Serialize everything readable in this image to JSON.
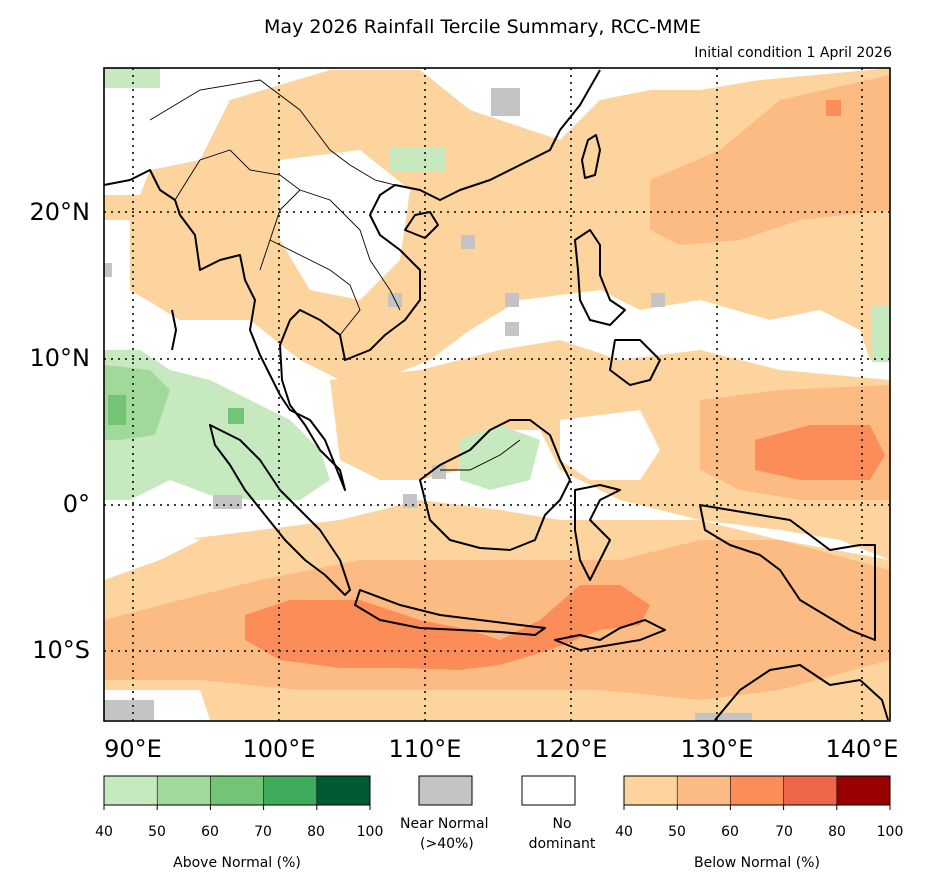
{
  "title": "May 2026 Rainfall Tercile Summary, RCC-MME",
  "subtitle": "Initial condition 1 April 2026",
  "map": {
    "lat_labels": [
      "20°N",
      "10°N",
      "0°",
      "10°S"
    ],
    "lon_labels": [
      "90°E",
      "100°E",
      "110°E",
      "120°E",
      "130°E",
      "140°E"
    ]
  },
  "legend": {
    "above": {
      "caption": "Above Normal (%)",
      "ticks": [
        "40",
        "50",
        "60",
        "70",
        "80",
        "100"
      ],
      "colors": [
        "#c7e9c0",
        "#a1d99b",
        "#74c476",
        "#41ab5d",
        "#005a32"
      ]
    },
    "near": {
      "caption": "Near Normal (>40%)",
      "line1": "Near Normal",
      "line2": "(>40%)",
      "color": "#c4c4c4"
    },
    "none": {
      "caption": "No dominant",
      "line1": "No",
      "line2": "dominant",
      "color": "#ffffff"
    },
    "below": {
      "caption": "Below Normal (%)",
      "ticks": [
        "40",
        "50",
        "60",
        "70",
        "80",
        "100"
      ],
      "colors": [
        "#fdd49e",
        "#fdbb84",
        "#fc8d59",
        "#ef6548",
        "#990000"
      ]
    }
  }
}
